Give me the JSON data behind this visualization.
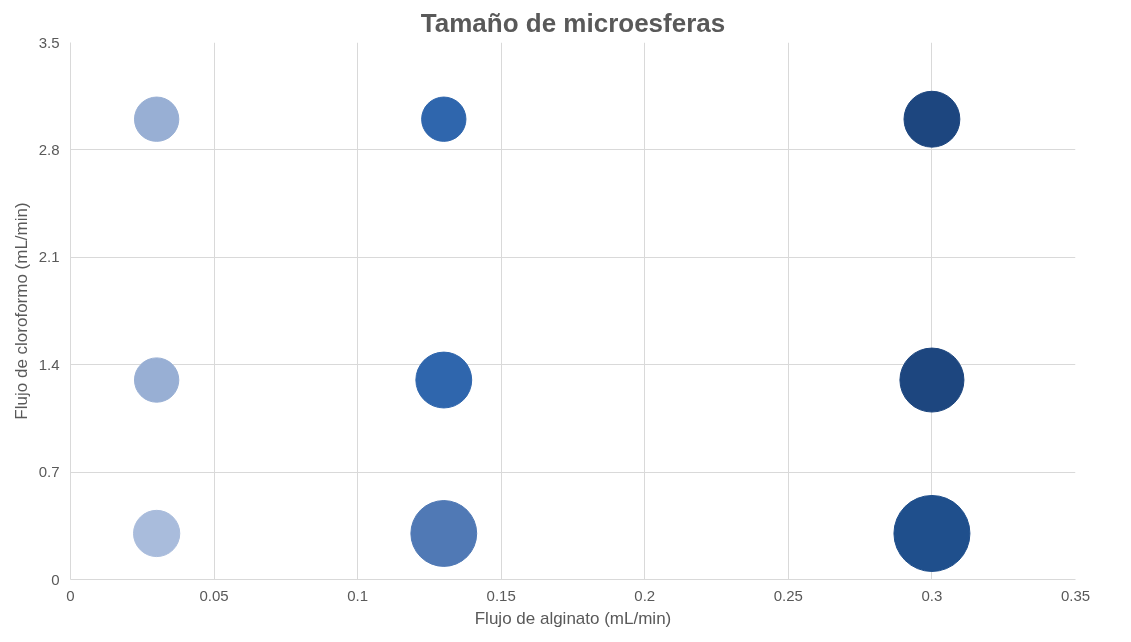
{
  "chart_data": {
    "type": "bubble",
    "title": "Tamaño de microesferas",
    "xlabel": "Flujo de alginato (mL/min)",
    "ylabel": "Flujo de cloroformo (mL/min)",
    "x": [
      0.03,
      0.13,
      0.3,
      0.03,
      0.13,
      0.3,
      0.03,
      0.13,
      0.3
    ],
    "values": [
      3.0,
      3.0,
      3.0,
      1.3,
      1.3,
      1.3,
      0.3,
      0.3,
      0.3
    ],
    "sizes": [
      0.34,
      0.34,
      0.54,
      0.34,
      0.54,
      0.71,
      0.37,
      0.75,
      1
    ],
    "colors": [
      "#98afd4",
      "#2f66ad",
      "#1d467f",
      "#98afd4",
      "#2f66ad",
      "#1d467f",
      "#a9bcdc",
      "#5079b5",
      "#1f4f8c"
    ],
    "xlim": [
      0,
      0.35
    ],
    "xticks": [
      0,
      0.05,
      0.1,
      0.15,
      0.2,
      0.25,
      0.3,
      0.35
    ],
    "ylim": [
      0,
      3.5
    ],
    "yticks": [
      0,
      0.7,
      1.4,
      2.1,
      2.8,
      3.5
    ],
    "grid": true
  }
}
